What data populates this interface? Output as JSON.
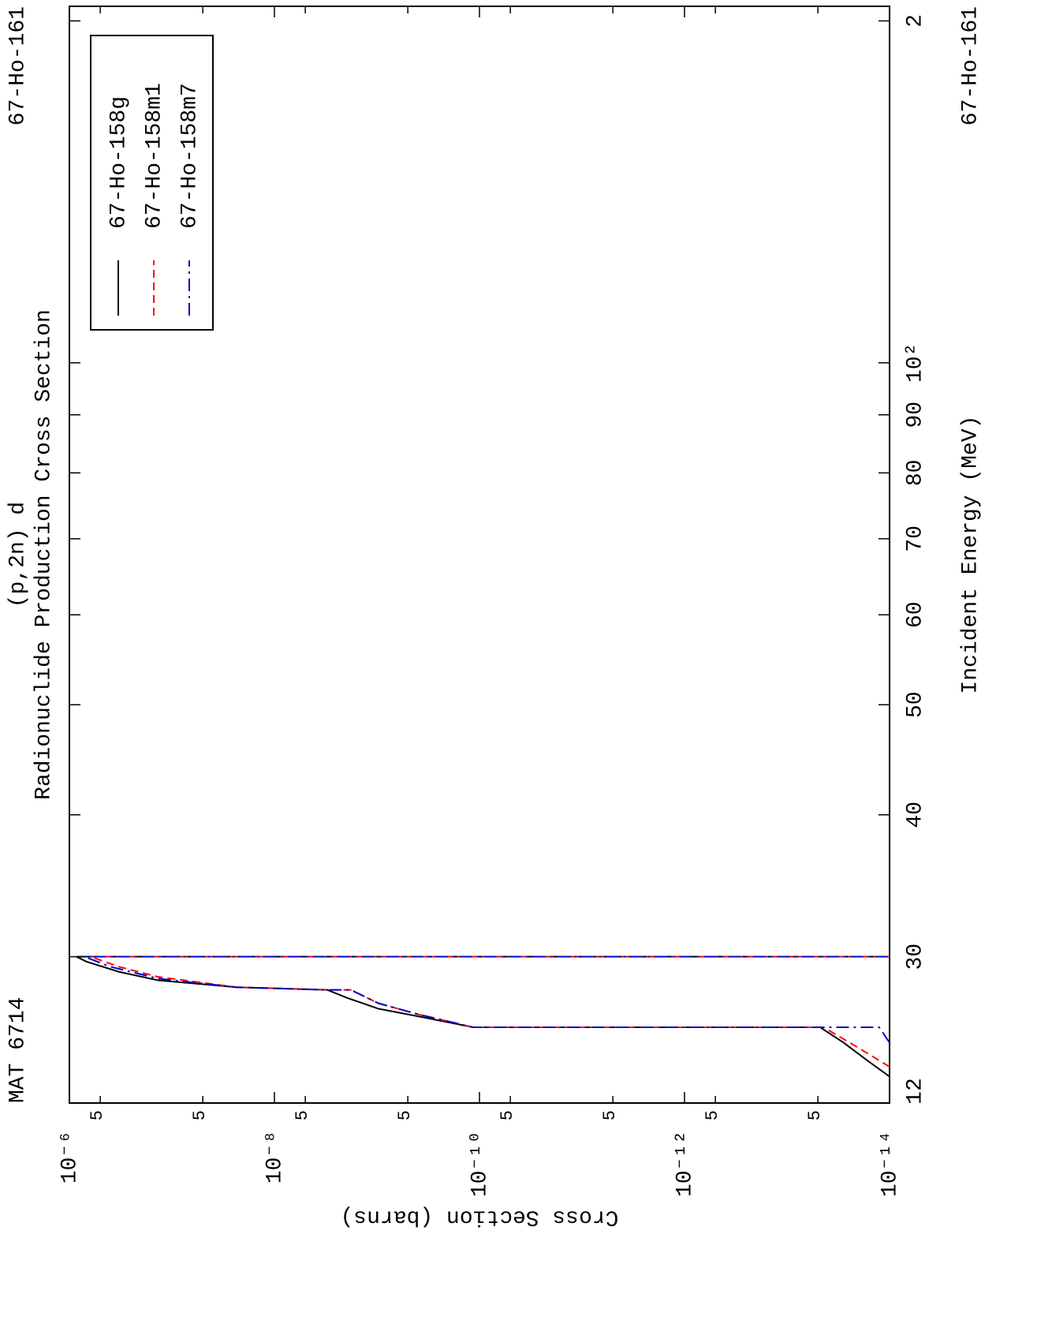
{
  "chart_data": {
    "type": "line",
    "title": "Radionuclide Production Cross Section",
    "subtitle": "(p,2n) d",
    "annotations": [
      "MAT 6714",
      "67-Ho-161",
      "67-Ho-161"
    ],
    "corner_label": "12",
    "x_label": "Incident Energy (MeV)",
    "y_label": "Cross Section (barns)",
    "xlog": true,
    "ylog": true,
    "xlim": [
      22.3,
      206
    ],
    "ylim": [
      1e-14,
      1e-06
    ],
    "xticks": [
      30,
      40,
      50,
      60,
      70,
      80,
      90,
      {
        "value": 100,
        "label": "10²"
      },
      {
        "value": 200,
        "label": "2"
      }
    ],
    "yticks": [
      {
        "value": 1e-06,
        "label": "10⁻⁶"
      },
      {
        "value": 5e-07,
        "label": "5"
      },
      {
        "value": 5e-08,
        "label": "5"
      },
      {
        "value": 1e-08,
        "label": "10⁻⁸"
      },
      {
        "value": 5e-09,
        "label": "5"
      },
      {
        "value": 5e-10,
        "label": "5"
      },
      {
        "value": 1e-10,
        "label": "10⁻¹⁰"
      },
      {
        "value": 5e-11,
        "label": "5"
      },
      {
        "value": 5e-12,
        "label": "5"
      },
      {
        "value": 1e-12,
        "label": "10⁻¹²"
      },
      {
        "value": 5e-13,
        "label": "5"
      },
      {
        "value": 5e-14,
        "label": "5"
      },
      {
        "value": 1e-14,
        "label": "10⁻¹⁴"
      }
    ],
    "legend": "top-right",
    "series": [
      {
        "name": "67-Ho-158g",
        "color": "#000000",
        "style": "solid",
        "x": [
          23.53,
          24.3,
          25.2,
          26.0,
          26.0,
          26.5,
          27.0,
          27.6,
          28.05,
          28.2,
          28.6,
          29.1,
          29.7,
          30,
          30
        ],
        "values": [
          1e-14,
          1.64e-14,
          2.8e-14,
          4.75e-14,
          1.15e-10,
          3.3e-10,
          9.7e-10,
          1.96e-09,
          3.05e-09,
          2.34e-08,
          1.37e-07,
          3.3e-07,
          6.8e-07,
          8.5e-07,
          0
        ]
      },
      {
        "name": "67-Ho-158m1",
        "color": "#ff0000",
        "style": "dashed",
        "x": [
          24.0,
          25.0,
          26.0,
          26.0,
          26.7,
          27.3,
          28.05,
          28.05,
          28.2,
          28.8,
          29.4,
          30,
          30
        ],
        "values": [
          1e-14,
          2.1e-14,
          4.4e-14,
          1.15e-10,
          4e-10,
          9.7e-10,
          1.8e-09,
          3.05e-09,
          2.34e-08,
          1.37e-07,
          3.3e-07,
          6.2e-07,
          0
        ]
      },
      {
        "name": "67-Ho-158m7",
        "color": "#0000cc",
        "style": "dashdot",
        "x": [
          25.2,
          26.0,
          26.0,
          26.7,
          27.3,
          28.05,
          28.05,
          28.2,
          28.7,
          29.4,
          30,
          30
        ],
        "values": [
          1e-14,
          1.26e-14,
          1.15e-10,
          4e-10,
          9.7e-10,
          1.8e-09,
          3.05e-09,
          2.34e-08,
          1.37e-07,
          4e-07,
          7.1e-07,
          0
        ]
      }
    ]
  }
}
